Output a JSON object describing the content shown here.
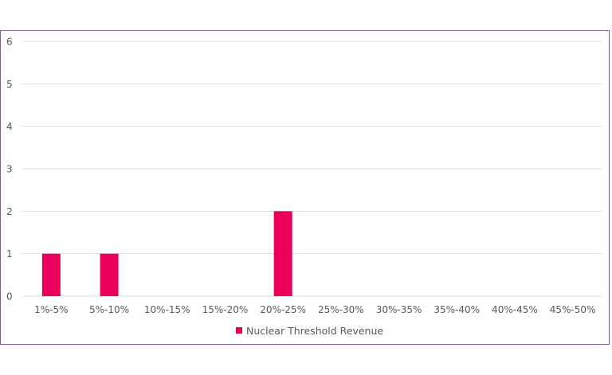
{
  "chart_data": {
    "type": "bar",
    "title": "",
    "xlabel": "",
    "ylabel": "",
    "categories": [
      "1%-5%",
      "5%-10%",
      "10%-15%",
      "15%-20%",
      "20%-25%",
      "25%-30%",
      "30%-35%",
      "35%-40%",
      "40%-45%",
      "45%-50%"
    ],
    "series": [
      {
        "name": "Nuclear Threshold Revenue",
        "values": [
          1,
          1,
          0,
          0,
          2,
          0,
          0,
          0,
          0,
          0
        ],
        "color": "#e8005a"
      }
    ],
    "ylim": [
      0,
      6
    ],
    "yticks": [
      "0",
      "1",
      "2",
      "3",
      "4",
      "5",
      "6"
    ],
    "grid": true,
    "legend": "bottom"
  }
}
